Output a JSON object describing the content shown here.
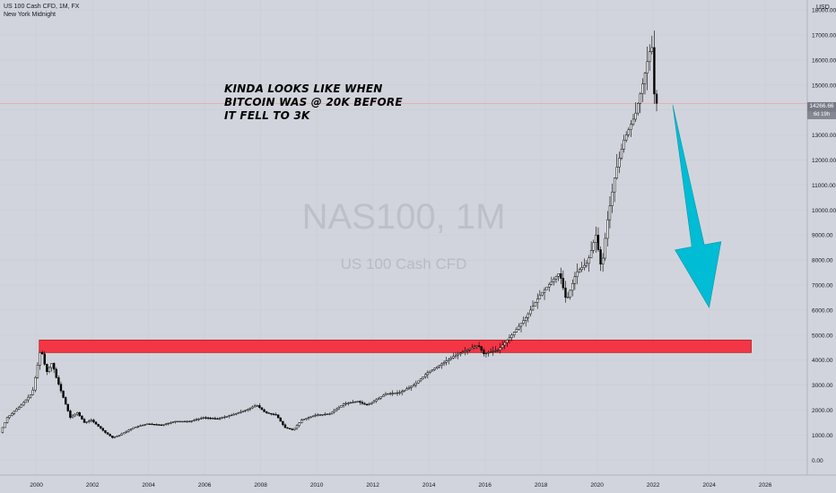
{
  "legend": {
    "symbol_line": "US 100 Cash CFD, 1M, FX",
    "session": "New York Midnight"
  },
  "watermark": {
    "symbol": "NAS100, 1M",
    "description": "US 100 Cash CFD"
  },
  "annotation": {
    "lines": [
      "KINDA LOOKS LIKE WHEN",
      "BITCOIN WAS @ 20K BEFORE",
      "IT FELL TO 3K"
    ]
  },
  "price_axis": {
    "currency": "USD",
    "current_price": "14266.66",
    "countdown": "6d 19h"
  },
  "colors": {
    "background": "#d1d4dc",
    "candle_up": "#ffffff",
    "candle_down": "#000000",
    "zone_fill": "#f23645",
    "arrow_fill": "#00bcd4",
    "price_line": "#ef9a9a"
  },
  "chart_data": {
    "type": "candlestick",
    "timeframe": "1M",
    "x_ticks": [
      "2000",
      "2002",
      "2004",
      "2006",
      "2008",
      "2010",
      "2012",
      "2014",
      "2016",
      "2018",
      "2020",
      "2022",
      "2024",
      "2026"
    ],
    "y_ticks": [
      "0.00",
      "1000.00",
      "2000.00",
      "3000.00",
      "4000.00",
      "5000.00",
      "6000.00",
      "7000.00",
      "8000.00",
      "9000.00",
      "10000.00",
      "11000.00",
      "12000.00",
      "13000.00",
      "14000.00",
      "15000.00",
      "16000.00",
      "17000.00",
      "18000.00"
    ],
    "ylim": [
      -600,
      18400
    ],
    "xlim": [
      1998.7,
      2027.5
    ],
    "price_path": [
      [
        1998.75,
        1100
      ],
      [
        1999.0,
        1700
      ],
      [
        1999.5,
        2200
      ],
      [
        1999.9,
        2700
      ],
      [
        2000.0,
        3300
      ],
      [
        2000.2,
        4500
      ],
      [
        2000.4,
        3500
      ],
      [
        2000.6,
        3900
      ],
      [
        2000.75,
        3300
      ],
      [
        2001.0,
        2500
      ],
      [
        2001.25,
        1700
      ],
      [
        2001.5,
        1900
      ],
      [
        2001.75,
        1500
      ],
      [
        2002.0,
        1600
      ],
      [
        2002.5,
        1100
      ],
      [
        2002.75,
        900
      ],
      [
        2003.0,
        1000
      ],
      [
        2003.5,
        1300
      ],
      [
        2004.0,
        1450
      ],
      [
        2004.5,
        1400
      ],
      [
        2005.0,
        1550
      ],
      [
        2005.5,
        1550
      ],
      [
        2006.0,
        1700
      ],
      [
        2006.5,
        1650
      ],
      [
        2007.0,
        1800
      ],
      [
        2007.5,
        2000
      ],
      [
        2007.9,
        2200
      ],
      [
        2008.2,
        1900
      ],
      [
        2008.6,
        1800
      ],
      [
        2008.9,
        1300
      ],
      [
        2009.2,
        1200
      ],
      [
        2009.5,
        1600
      ],
      [
        2010.0,
        1800
      ],
      [
        2010.5,
        1850
      ],
      [
        2011.0,
        2250
      ],
      [
        2011.5,
        2350
      ],
      [
        2011.8,
        2200
      ],
      [
        2012.0,
        2300
      ],
      [
        2012.5,
        2650
      ],
      [
        2013.0,
        2700
      ],
      [
        2013.5,
        3000
      ],
      [
        2014.0,
        3500
      ],
      [
        2014.5,
        3850
      ],
      [
        2015.0,
        4200
      ],
      [
        2015.5,
        4450
      ],
      [
        2015.8,
        4600
      ],
      [
        2016.0,
        4250
      ],
      [
        2016.5,
        4400
      ],
      [
        2017.0,
        5000
      ],
      [
        2017.5,
        5700
      ],
      [
        2018.0,
        6600
      ],
      [
        2018.7,
        7500
      ],
      [
        2018.95,
        6350
      ],
      [
        2019.3,
        7500
      ],
      [
        2019.7,
        7900
      ],
      [
        2020.0,
        9000
      ],
      [
        2020.2,
        7600
      ],
      [
        2020.4,
        9500
      ],
      [
        2020.7,
        11500
      ],
      [
        2021.0,
        12800
      ],
      [
        2021.4,
        13800
      ],
      [
        2021.7,
        15200
      ],
      [
        2021.9,
        16300
      ],
      [
        2022.0,
        16500
      ],
      [
        2022.1,
        14266.66
      ]
    ],
    "resistance_zone": {
      "x_start": 2000.1,
      "x_end": 2025.5,
      "y_low": 4300,
      "y_high": 4800
    },
    "projection_arrow": {
      "from": [
        2022.7,
        14200
      ],
      "to": [
        2024.0,
        6100
      ]
    },
    "current_price": 14266.66
  }
}
